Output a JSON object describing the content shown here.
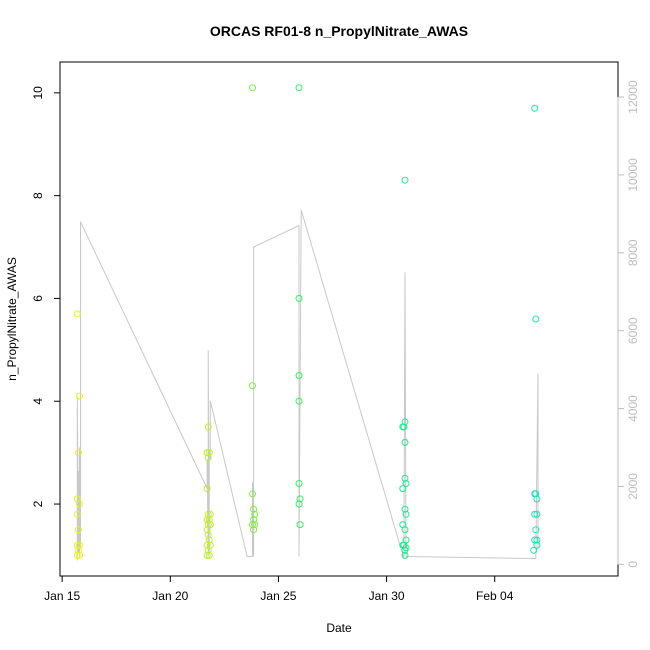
{
  "chart_data": {
    "type": "scatter",
    "title": "ORCAS RF01-8 n_PropylNitrate_AWAS",
    "xlabel": "Date",
    "ylabel": "n_PropylNitrate_AWAS",
    "x_axis": {
      "type": "date",
      "range_days_since_jan15": [
        -0.1,
        25.7
      ],
      "ticks": [
        {
          "day": 0,
          "label": "Jan 15"
        },
        {
          "day": 5,
          "label": "Jan 20"
        },
        {
          "day": 10,
          "label": "Jan 25"
        },
        {
          "day": 15,
          "label": "Jan 30"
        },
        {
          "day": 20,
          "label": "Feb 04"
        }
      ]
    },
    "y_axis": {
      "range": [
        0.6,
        10.6
      ],
      "ticks": [
        2,
        4,
        6,
        8,
        10
      ]
    },
    "y2_axis": {
      "range": [
        -300,
        12900
      ],
      "ticks": [
        0,
        2000,
        4000,
        6000,
        8000,
        10000,
        12000
      ],
      "color": "#bdbdbd"
    },
    "points": [
      {
        "x": 0.7,
        "y": 5.7,
        "color": "#e8f21d"
      },
      {
        "x": 0.8,
        "y": 4.1,
        "color": "#e8f21d"
      },
      {
        "x": 0.75,
        "y": 3.0,
        "color": "#e8f21d"
      },
      {
        "x": 0.7,
        "y": 2.1,
        "color": "#e8f21d"
      },
      {
        "x": 0.8,
        "y": 2.0,
        "color": "#e8f21d"
      },
      {
        "x": 0.7,
        "y": 1.8,
        "color": "#e8f21d"
      },
      {
        "x": 0.75,
        "y": 1.5,
        "color": "#e8f21d"
      },
      {
        "x": 0.7,
        "y": 1.2,
        "color": "#e8f21d"
      },
      {
        "x": 0.8,
        "y": 1.2,
        "color": "#e8f21d"
      },
      {
        "x": 0.75,
        "y": 1.1,
        "color": "#e8f21d"
      },
      {
        "x": 0.7,
        "y": 1.0,
        "color": "#e8f21d"
      },
      {
        "x": 0.8,
        "y": 1.0,
        "color": "#e8f21d"
      },
      {
        "x": 6.75,
        "y": 3.5,
        "color": "#bfef2a"
      },
      {
        "x": 6.7,
        "y": 3.0,
        "color": "#bfef2a"
      },
      {
        "x": 6.8,
        "y": 3.0,
        "color": "#bfef2a"
      },
      {
        "x": 6.75,
        "y": 2.9,
        "color": "#bfef2a"
      },
      {
        "x": 6.7,
        "y": 2.3,
        "color": "#bfef2a"
      },
      {
        "x": 6.75,
        "y": 1.8,
        "color": "#bfef2a"
      },
      {
        "x": 6.85,
        "y": 1.8,
        "color": "#bfef2a"
      },
      {
        "x": 6.7,
        "y": 1.7,
        "color": "#bfef2a"
      },
      {
        "x": 6.8,
        "y": 1.7,
        "color": "#bfef2a"
      },
      {
        "x": 6.75,
        "y": 1.6,
        "color": "#bfef2a"
      },
      {
        "x": 6.85,
        "y": 1.6,
        "color": "#bfef2a"
      },
      {
        "x": 6.7,
        "y": 1.5,
        "color": "#bfef2a"
      },
      {
        "x": 6.75,
        "y": 1.4,
        "color": "#bfef2a"
      },
      {
        "x": 6.8,
        "y": 1.3,
        "color": "#bfef2a"
      },
      {
        "x": 6.7,
        "y": 1.2,
        "color": "#bfef2a"
      },
      {
        "x": 6.85,
        "y": 1.2,
        "color": "#bfef2a"
      },
      {
        "x": 6.75,
        "y": 1.1,
        "color": "#bfef2a"
      },
      {
        "x": 6.7,
        "y": 1.0,
        "color": "#bfef2a"
      },
      {
        "x": 6.8,
        "y": 1.0,
        "color": "#bfef2a"
      },
      {
        "x": 8.8,
        "y": 10.1,
        "color": "#7ef03c"
      },
      {
        "x": 8.8,
        "y": 4.3,
        "color": "#7ef03c"
      },
      {
        "x": 8.8,
        "y": 2.2,
        "color": "#7ef03c"
      },
      {
        "x": 8.85,
        "y": 1.9,
        "color": "#7ef03c"
      },
      {
        "x": 8.9,
        "y": 1.8,
        "color": "#7ef03c"
      },
      {
        "x": 8.85,
        "y": 1.7,
        "color": "#7ef03c"
      },
      {
        "x": 8.9,
        "y": 1.6,
        "color": "#7ef03c"
      },
      {
        "x": 8.8,
        "y": 1.6,
        "color": "#7ef03c"
      },
      {
        "x": 8.85,
        "y": 1.5,
        "color": "#7ef03c"
      },
      {
        "x": 10.95,
        "y": 10.1,
        "color": "#36ee63"
      },
      {
        "x": 10.95,
        "y": 6.0,
        "color": "#36ee63"
      },
      {
        "x": 10.95,
        "y": 4.5,
        "color": "#36ee63"
      },
      {
        "x": 10.95,
        "y": 4.0,
        "color": "#36ee63"
      },
      {
        "x": 10.95,
        "y": 2.4,
        "color": "#36ee63"
      },
      {
        "x": 11.0,
        "y": 2.1,
        "color": "#36ee63"
      },
      {
        "x": 10.95,
        "y": 2.0,
        "color": "#36ee63"
      },
      {
        "x": 11.0,
        "y": 1.6,
        "color": "#36ee63"
      },
      {
        "x": 15.85,
        "y": 8.3,
        "color": "#21e990"
      },
      {
        "x": 15.85,
        "y": 3.6,
        "color": "#21e990"
      },
      {
        "x": 15.75,
        "y": 3.5,
        "color": "#21e990"
      },
      {
        "x": 15.8,
        "y": 3.5,
        "color": "#21e990"
      },
      {
        "x": 15.85,
        "y": 3.2,
        "color": "#21e990"
      },
      {
        "x": 15.85,
        "y": 2.5,
        "color": "#21e990"
      },
      {
        "x": 15.9,
        "y": 2.4,
        "color": "#21e990"
      },
      {
        "x": 15.75,
        "y": 2.3,
        "color": "#21e990"
      },
      {
        "x": 15.85,
        "y": 1.9,
        "color": "#21e990"
      },
      {
        "x": 15.9,
        "y": 1.8,
        "color": "#21e990"
      },
      {
        "x": 15.75,
        "y": 1.6,
        "color": "#21e990"
      },
      {
        "x": 15.85,
        "y": 1.5,
        "color": "#21e990"
      },
      {
        "x": 15.9,
        "y": 1.3,
        "color": "#21e990"
      },
      {
        "x": 15.75,
        "y": 1.2,
        "color": "#21e990"
      },
      {
        "x": 15.8,
        "y": 1.2,
        "color": "#21e990"
      },
      {
        "x": 15.85,
        "y": 1.1,
        "color": "#21e990"
      },
      {
        "x": 15.9,
        "y": 1.15,
        "color": "#21e990"
      },
      {
        "x": 15.85,
        "y": 1.0,
        "color": "#21e990"
      },
      {
        "x": 21.85,
        "y": 9.7,
        "color": "#1ee3b6"
      },
      {
        "x": 21.9,
        "y": 5.6,
        "color": "#1ee3b6"
      },
      {
        "x": 21.85,
        "y": 2.2,
        "color": "#1ee3b6"
      },
      {
        "x": 21.9,
        "y": 2.2,
        "color": "#1ee3b6"
      },
      {
        "x": 21.95,
        "y": 2.1,
        "color": "#1ee3b6"
      },
      {
        "x": 21.85,
        "y": 1.8,
        "color": "#1ee3b6"
      },
      {
        "x": 21.95,
        "y": 1.8,
        "color": "#1ee3b6"
      },
      {
        "x": 21.9,
        "y": 1.5,
        "color": "#1ee3b6"
      },
      {
        "x": 21.85,
        "y": 1.3,
        "color": "#1ee3b6"
      },
      {
        "x": 21.95,
        "y": 1.3,
        "color": "#1ee3b6"
      },
      {
        "x": 21.8,
        "y": 1.1,
        "color": "#1ee3b6"
      },
      {
        "x": 21.95,
        "y": 1.2,
        "color": "#1ee3b6"
      }
    ],
    "altitude_line": {
      "axis": "y2",
      "color": "#c8c8c8",
      "points": [
        [
          0.7,
          100
        ],
        [
          0.7,
          4300
        ],
        [
          0.75,
          300
        ],
        [
          0.75,
          2400
        ],
        [
          0.8,
          200
        ],
        [
          0.8,
          3000
        ],
        [
          0.85,
          400
        ],
        [
          0.85,
          8800
        ],
        [
          6.7,
          1950
        ],
        [
          6.7,
          2700
        ],
        [
          6.75,
          200
        ],
        [
          6.75,
          5500
        ],
        [
          6.8,
          300
        ],
        [
          6.8,
          2900
        ],
        [
          6.85,
          2700
        ],
        [
          6.85,
          4200
        ],
        [
          8.55,
          200
        ],
        [
          8.8,
          200
        ],
        [
          8.8,
          2100
        ],
        [
          8.85,
          200
        ],
        [
          8.85,
          8150
        ],
        [
          10.95,
          8700
        ],
        [
          10.95,
          200
        ],
        [
          11.05,
          9100
        ],
        [
          15.8,
          150
        ],
        [
          15.85,
          7500
        ],
        [
          15.9,
          200
        ],
        [
          21.85,
          150
        ],
        [
          21.9,
          150
        ],
        [
          22.0,
          4900
        ],
        [
          22.0,
          400
        ]
      ]
    }
  }
}
